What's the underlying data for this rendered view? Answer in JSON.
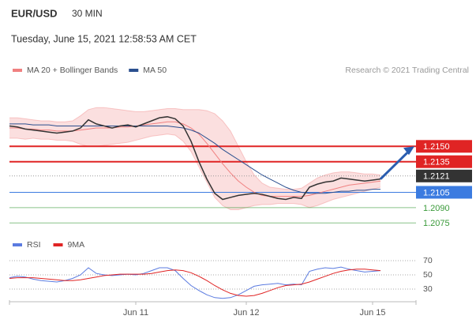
{
  "header": {
    "symbol": "EUR/USD",
    "timeframe": "30 MIN",
    "date": "Tuesday, June 15, 2021 12:58:53 AM CET",
    "credit": "Research © 2021 Trading Central"
  },
  "chart_data": [
    {
      "type": "line",
      "ylim": [
        1.2069,
        1.2216
      ],
      "categories": [
        null,
        null,
        null,
        null,
        null,
        null,
        null,
        null,
        null,
        null,
        null,
        null,
        null,
        null,
        null,
        null,
        "Jun 11",
        null,
        null,
        null,
        null,
        null,
        null,
        null,
        null,
        null,
        null,
        null,
        null,
        null,
        "Jun 12",
        null,
        null,
        null,
        null,
        null,
        null,
        null,
        null,
        null,
        null,
        null,
        null,
        null,
        null,
        null,
        "Jun 15",
        null
      ],
      "series": [
        {
          "name": "MA 20 + Bollinger Bands",
          "color": "#f08080",
          "values": [
            1.2168,
            1.2168,
            1.2167,
            1.2167,
            1.2166,
            1.2166,
            1.2165,
            1.2165,
            1.2165,
            1.2166,
            1.2167,
            1.2168,
            1.2168,
            1.2168,
            1.2169,
            1.2169,
            1.217,
            1.2171,
            1.2172,
            1.2173,
            1.2174,
            1.2174,
            1.2172,
            1.2168,
            1.2162,
            1.2153,
            1.2143,
            1.2133,
            1.2124,
            1.2116,
            1.211,
            1.2105,
            1.2102,
            1.2101,
            1.2101,
            1.2101,
            1.2101,
            1.2101,
            1.2102,
            1.2104,
            1.2106,
            1.2108,
            1.211,
            1.2112,
            1.2113,
            1.2114,
            1.2115,
            1.2116
          ],
          "upper": [
            1.2178,
            1.2178,
            1.2177,
            1.2176,
            1.2175,
            1.2175,
            1.2174,
            1.2174,
            1.2175,
            1.218,
            1.2186,
            1.2188,
            1.2188,
            1.2187,
            1.2186,
            1.2185,
            1.2184,
            1.2184,
            1.2185,
            1.2186,
            1.2187,
            1.2187,
            1.2186,
            1.2186,
            1.2186,
            1.2185,
            1.2182,
            1.2175,
            1.2165,
            1.215,
            1.2135,
            1.2122,
            1.2114,
            1.211,
            1.2109,
            1.2108,
            1.2108,
            1.2109,
            1.2114,
            1.2119,
            1.2122,
            1.2124,
            1.2125,
            1.2125,
            1.2124,
            1.2123,
            1.2123,
            1.2122
          ],
          "lower": [
            1.2158,
            1.2158,
            1.2157,
            1.2158,
            1.2157,
            1.2157,
            1.2156,
            1.2156,
            1.2155,
            1.2152,
            1.215,
            1.215,
            1.2151,
            1.2152,
            1.2153,
            1.2154,
            1.2156,
            1.2158,
            1.216,
            1.2161,
            1.2162,
            1.2161,
            1.2155,
            1.2145,
            1.213,
            1.2115,
            1.21,
            1.2092,
            1.2088,
            1.2088,
            1.209,
            1.2092,
            1.2093,
            1.2093,
            1.2094,
            1.2094,
            1.2094,
            1.2093,
            1.209,
            1.2092,
            1.2095,
            1.2098,
            1.21,
            1.2102,
            1.2104,
            1.2106,
            1.2108,
            1.211
          ]
        },
        {
          "name": "MA 50",
          "color": "#2a4f8f",
          "values": [
            1.2172,
            1.2172,
            1.2172,
            1.2171,
            1.2171,
            1.2171,
            1.217,
            1.217,
            1.217,
            1.217,
            1.217,
            1.217,
            1.217,
            1.217,
            1.217,
            1.217,
            1.217,
            1.217,
            1.217,
            1.217,
            1.217,
            1.2169,
            1.2168,
            1.2166,
            1.2163,
            1.2158,
            1.2153,
            1.2147,
            1.2142,
            1.2137,
            1.2132,
            1.2127,
            1.2122,
            1.2118,
            1.2114,
            1.211,
            1.2107,
            1.2105,
            1.2104,
            1.2104,
            1.2104,
            1.2105,
            1.2106,
            1.2106,
            1.2107,
            1.2107,
            1.2108,
            1.2108
          ]
        }
      ],
      "price": {
        "color": "#333333",
        "values": [
          1.217,
          1.2169,
          1.2167,
          1.2166,
          1.2165,
          1.2164,
          1.2163,
          1.2164,
          1.2165,
          1.2168,
          1.2176,
          1.2172,
          1.217,
          1.2168,
          1.217,
          1.2171,
          1.2169,
          1.2172,
          1.2175,
          1.2178,
          1.2179,
          1.2177,
          1.217,
          1.2155,
          1.2135,
          1.2118,
          1.2104,
          1.2098,
          1.21,
          1.2102,
          1.2103,
          1.2104,
          1.2103,
          1.2101,
          1.2099,
          1.2098,
          1.21,
          1.2099,
          1.211,
          1.2113,
          1.2115,
          1.2116,
          1.2119,
          1.2118,
          1.2117,
          1.2116,
          1.2117,
          1.2118
        ]
      },
      "levels": [
        {
          "value": 1.215,
          "label": "1.2150",
          "color": "#e02424",
          "style": "box"
        },
        {
          "value": 1.2135,
          "label": "1.2135",
          "color": "#e02424",
          "style": "box"
        },
        {
          "value": 1.2121,
          "label": "1.2121",
          "color": "#333333",
          "style": "current"
        },
        {
          "value": 1.2105,
          "label": "1.2105",
          "color": "#3b7be0",
          "style": "box"
        },
        {
          "value": 1.209,
          "label": "1.2090",
          "color": "#3a9a3a",
          "style": "text"
        },
        {
          "value": 1.2075,
          "label": "1.2075",
          "color": "#3a9a3a",
          "style": "text"
        }
      ]
    },
    {
      "type": "line",
      "ylim": [
        10,
        90
      ],
      "yticks": [
        70,
        50,
        30
      ],
      "series": [
        {
          "name": "RSI",
          "color": "#5b7be0",
          "values": [
            46,
            48,
            47,
            44,
            42,
            41,
            40,
            42,
            45,
            50,
            60,
            52,
            50,
            49,
            50,
            51,
            50,
            52,
            56,
            60,
            60,
            56,
            45,
            35,
            28,
            22,
            18,
            17,
            18,
            22,
            28,
            34,
            36,
            37,
            38,
            36,
            37,
            36,
            55,
            58,
            60,
            59,
            61,
            58,
            56,
            54,
            55,
            56
          ]
        },
        {
          "name": "9MA",
          "color": "#e02424",
          "values": [
            45,
            46,
            46,
            46,
            45,
            44,
            43,
            42,
            42,
            43,
            45,
            47,
            49,
            50,
            51,
            51,
            51,
            51,
            52,
            54,
            56,
            57,
            56,
            53,
            48,
            42,
            35,
            29,
            24,
            21,
            20,
            21,
            24,
            28,
            32,
            35,
            36,
            37,
            40,
            44,
            48,
            52,
            55,
            57,
            58,
            58,
            57,
            56
          ]
        }
      ]
    }
  ]
}
